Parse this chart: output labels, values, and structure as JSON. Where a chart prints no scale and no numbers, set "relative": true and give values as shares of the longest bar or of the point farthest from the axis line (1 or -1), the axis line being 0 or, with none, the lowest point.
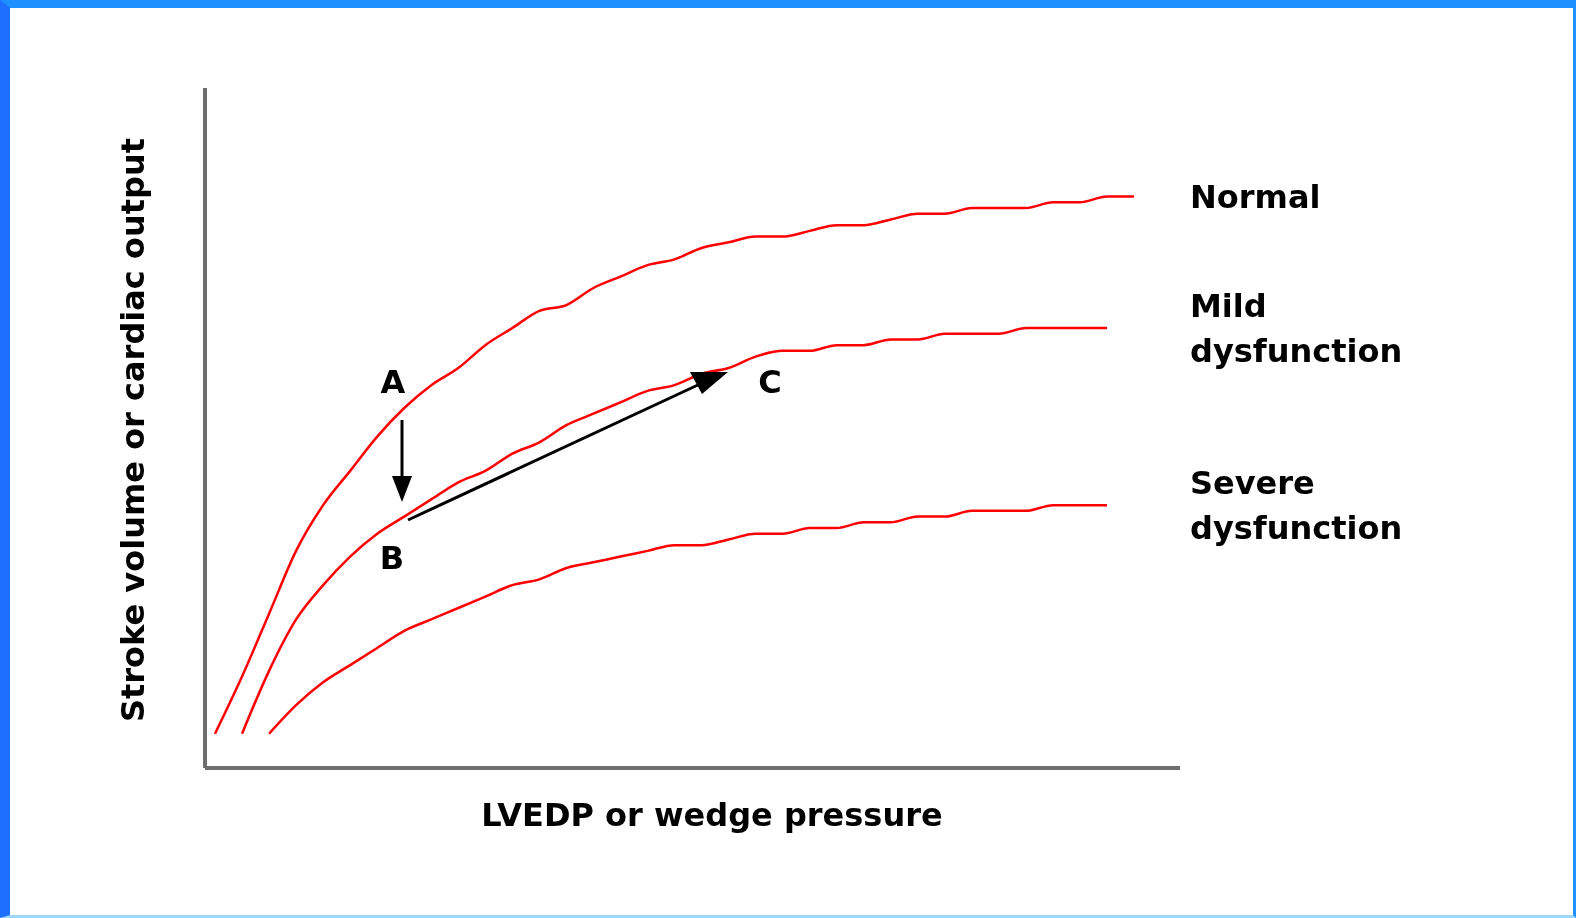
{
  "chart_data": {
    "type": "line",
    "relative": true,
    "xlabel": "LVEDP or wedge pressure",
    "ylabel": "Stroke volume or cardiac output",
    "categories": [
      null,
      null,
      null,
      null,
      null,
      null,
      null,
      null,
      null,
      null,
      null,
      null,
      null,
      null,
      null,
      null,
      null,
      null,
      null,
      null,
      null,
      null,
      null,
      null,
      null,
      null,
      null,
      null,
      null,
      null,
      null,
      null,
      null,
      null,
      null,
      null
    ],
    "series": [
      {
        "name": "Normal",
        "color": "#ff0000",
        "values": [
          0.06,
          0.16,
          0.27,
          0.38,
          0.46,
          0.52,
          0.58,
          0.63,
          0.67,
          0.7,
          0.74,
          0.77,
          0.8,
          0.81,
          0.84,
          0.86,
          0.88,
          0.89,
          0.91,
          0.92,
          0.93,
          0.93,
          0.94,
          0.95,
          0.95,
          0.96,
          0.97,
          0.97,
          0.98,
          0.98,
          0.98,
          0.99,
          0.99,
          1.0,
          1.0,
          null
        ]
      },
      {
        "name": "Mild dysfunction",
        "color": "#ff0000",
        "values": [
          null,
          0.06,
          0.17,
          0.26,
          0.32,
          0.37,
          0.41,
          0.44,
          0.47,
          0.5,
          0.52,
          0.55,
          0.57,
          0.6,
          0.62,
          0.64,
          0.66,
          0.67,
          0.69,
          0.7,
          0.72,
          0.73,
          0.73,
          0.74,
          0.74,
          0.75,
          0.75,
          0.76,
          0.76,
          0.76,
          0.77,
          0.77,
          0.77,
          0.77,
          null,
          null
        ]
      },
      {
        "name": "Severe dysfunction",
        "color": "#ff0000",
        "values": [
          null,
          null,
          0.06,
          0.11,
          0.15,
          0.18,
          0.21,
          0.24,
          0.26,
          0.28,
          0.3,
          0.32,
          0.33,
          0.35,
          0.36,
          0.37,
          0.38,
          0.39,
          0.39,
          0.4,
          0.41,
          0.41,
          0.42,
          0.42,
          0.43,
          0.43,
          0.44,
          0.44,
          0.45,
          0.45,
          0.45,
          0.46,
          0.46,
          0.46,
          null,
          null
        ]
      }
    ],
    "annotations": [
      "A",
      "B",
      "C"
    ]
  }
}
